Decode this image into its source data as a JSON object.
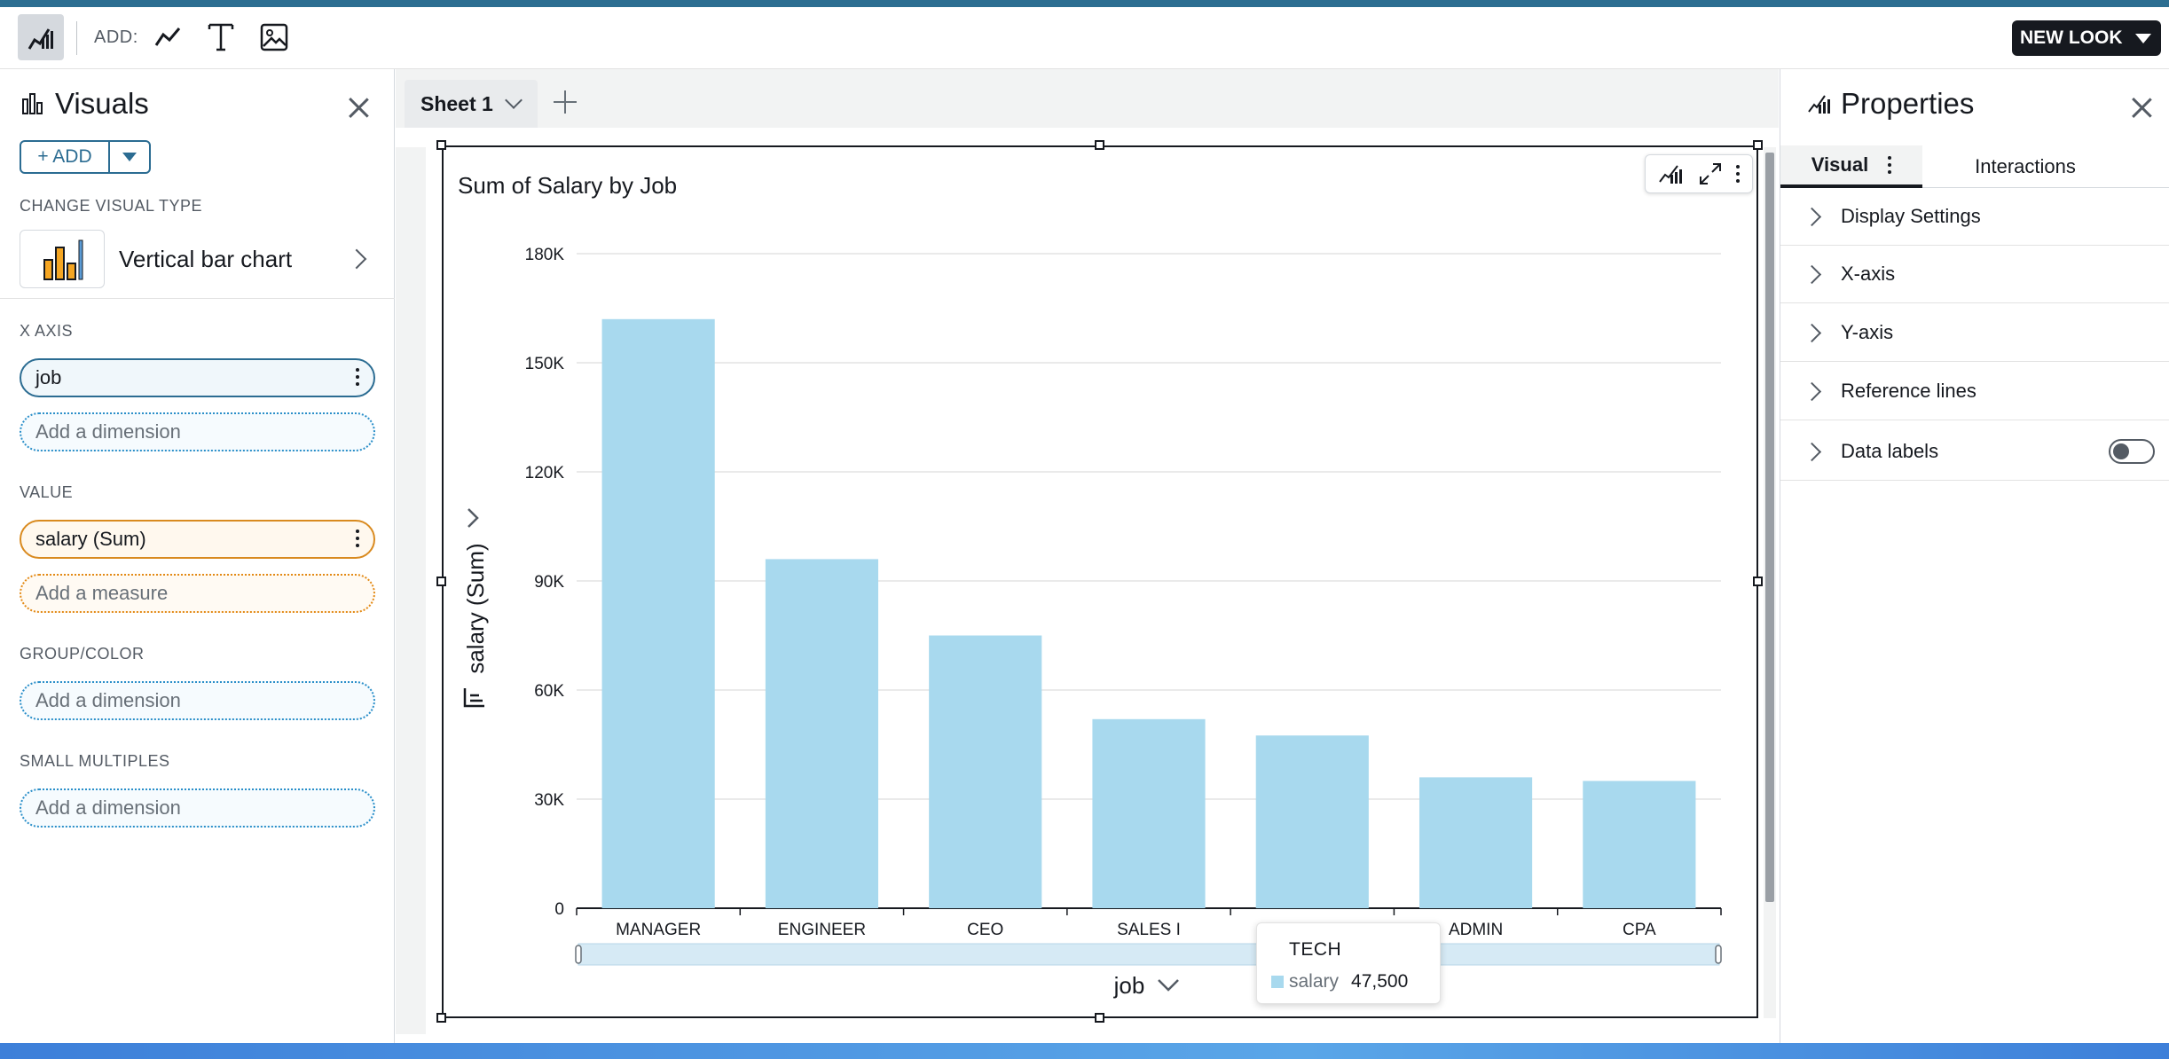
{
  "toolbar": {
    "add_label": "ADD:",
    "new_look_label": "NEW LOOK"
  },
  "left_panel": {
    "title": "Visuals",
    "add_button_label": "+ ADD",
    "change_visual_type_label": "CHANGE VISUAL TYPE",
    "visual_type_name": "Vertical bar chart",
    "x_axis_label": "X AXIS",
    "x_axis_field": "job",
    "x_axis_placeholder": "Add a dimension",
    "value_label": "VALUE",
    "value_field": "salary (Sum)",
    "value_placeholder": "Add a measure",
    "group_color_label": "GROUP/COLOR",
    "group_color_placeholder": "Add a dimension",
    "small_multiples_label": "SMALL MULTIPLES",
    "small_multiples_placeholder": "Add a dimension"
  },
  "sheet": {
    "tab_label": "Sheet 1"
  },
  "visual": {
    "title": "Sum of Salary by Job",
    "tooltip": {
      "title": "TECH",
      "series_label": "salary",
      "value": "47,500"
    }
  },
  "chart_data": {
    "type": "bar",
    "title": "Sum of Salary by Job",
    "xlabel": "job",
    "ylabel": "salary (Sum)",
    "categories": [
      "MANAGER",
      "ENGINEER",
      "CEO",
      "SALES I",
      "TECH",
      "ADMIN",
      "CPA"
    ],
    "category_labels_visible": [
      "MANAGER",
      "ENGINEER",
      "CEO",
      "SALES I",
      "",
      "ADMIN",
      "CPA"
    ],
    "series": [
      {
        "name": "salary",
        "values": [
          162000,
          96000,
          75000,
          52000,
          47500,
          36000,
          35000
        ]
      }
    ],
    "ylim": [
      0,
      180000
    ],
    "yticks": [
      0,
      30000,
      60000,
      90000,
      120000,
      150000,
      180000
    ],
    "ytick_labels": [
      "0",
      "30K",
      "60K",
      "90K",
      "120K",
      "150K",
      "180K"
    ],
    "bar_color": "#a8d9ee",
    "grid": true,
    "legend": "none"
  },
  "right_panel": {
    "title": "Properties",
    "tabs": [
      "Visual",
      "Interactions"
    ],
    "sections": [
      "Display Settings",
      "X-axis",
      "Y-axis",
      "Reference lines",
      "Data labels"
    ],
    "data_labels_enabled": false
  },
  "colors": {
    "accent": "#2b6c92",
    "bar": "#a8d9ee",
    "top_stripe": "#2c6e91"
  }
}
